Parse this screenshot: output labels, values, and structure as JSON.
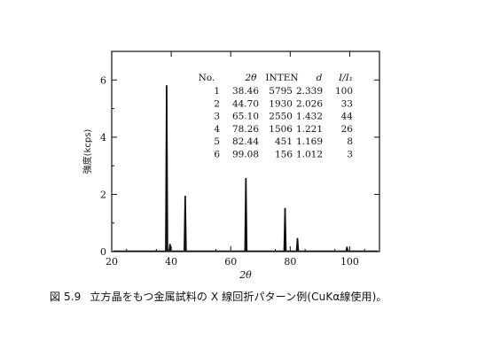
{
  "caption": {
    "figure_number": "図 5.9",
    "text": "立方晶をもつ金属試料の X 線回折パターン例(CuKα線使用)。"
  },
  "chart_data": {
    "type": "line",
    "xlabel": "2θ",
    "ylabel": "強度(kcps)",
    "xlim": [
      20,
      110
    ],
    "ylim": [
      0,
      7
    ],
    "x_ticks": [
      20,
      40,
      60,
      80,
      100
    ],
    "y_ticks": [
      0,
      2,
      4,
      6
    ],
    "grid": false,
    "series": [
      {
        "peaks": [
          {
            "x": 38.46,
            "y": 5.795
          },
          {
            "x": 39.6,
            "y": 0.25
          },
          {
            "x": 44.7,
            "y": 1.93
          },
          {
            "x": 65.1,
            "y": 2.55
          },
          {
            "x": 78.26,
            "y": 1.506
          },
          {
            "x": 82.44,
            "y": 0.451
          },
          {
            "x": 99.08,
            "y": 0.156
          }
        ]
      }
    ],
    "table": {
      "columns": [
        "No.",
        "2θ",
        "INTEN",
        "d",
        "I/I₁"
      ],
      "rows": [
        [
          "1",
          "38.46",
          "5795",
          "2.339",
          "100"
        ],
        [
          "2",
          "44.70",
          "1930",
          "2.026",
          "33"
        ],
        [
          "3",
          "65.10",
          "2550",
          "1.432",
          "44"
        ],
        [
          "4",
          "78.26",
          "1506",
          "1.221",
          "26"
        ],
        [
          "5",
          "82.44",
          "451",
          "1.169",
          "8"
        ],
        [
          "6",
          "99.08",
          "156",
          "1.012",
          "3"
        ]
      ]
    }
  }
}
